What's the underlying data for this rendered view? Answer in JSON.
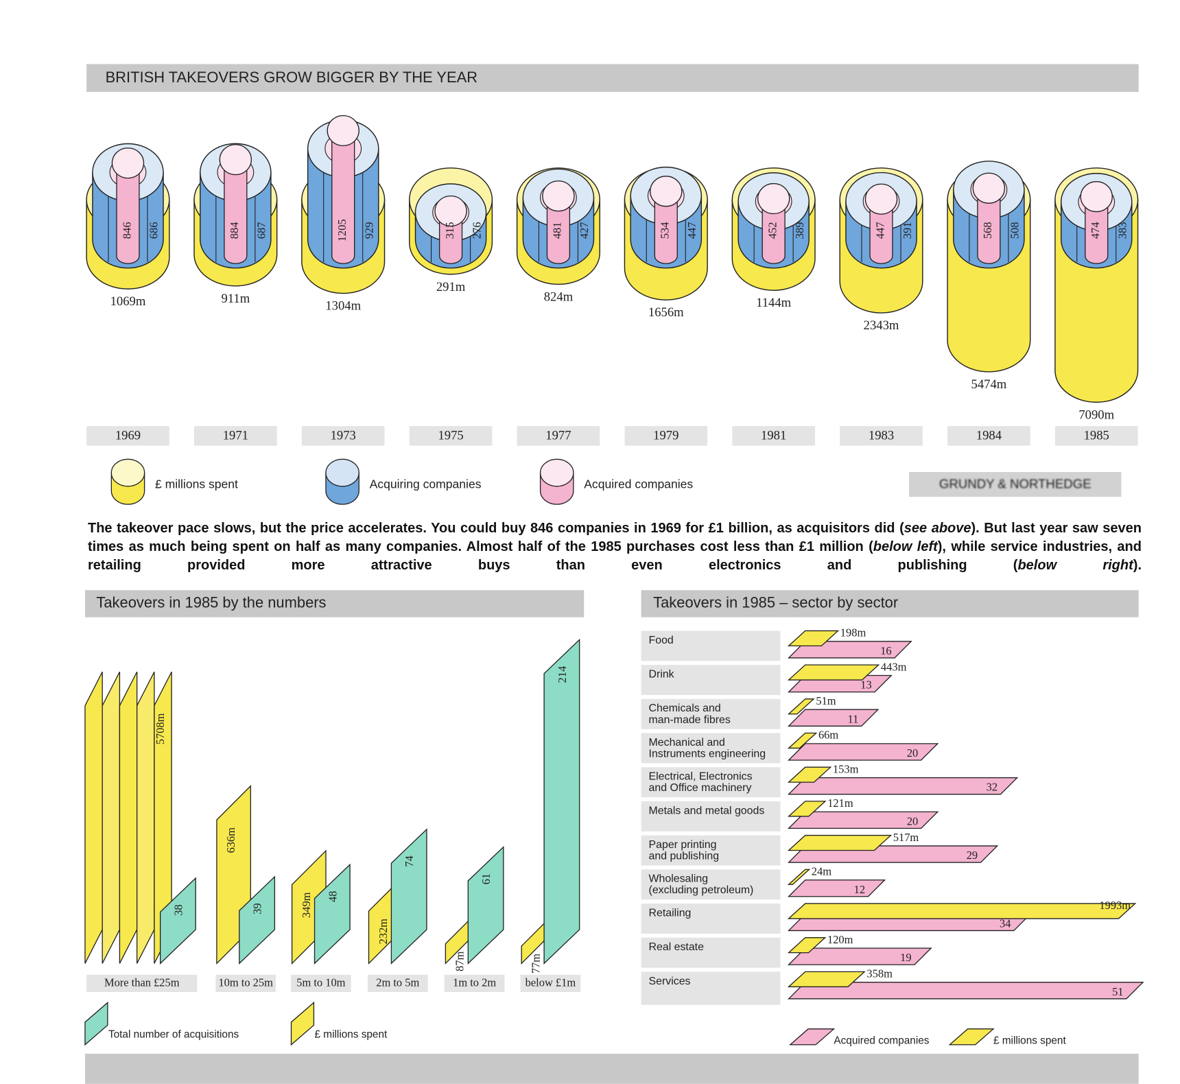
{
  "caption": [
    "The takeover pace slows, but the price accelerates. You could buy 846 companies in 1969 for £1 billion, as acquisitors did (",
    "see above",
    "). But last year saw seven times as much being spent on half as many companies. Almost half of the 1985 purchases cost less than £1 million (",
    "below left",
    "), while service industries, and retailing provided more attractive buys than even electronics and publishing (",
    "below right",
    ")."
  ],
  "credit": "GRUNDY & NORTHEDGE",
  "chart_data": [
    {
      "type": "cylinder",
      "title": "BRITISH TAKEOVERS GROW BIGGER BY THE YEAR",
      "categories": [
        "1969",
        "1971",
        "1973",
        "1975",
        "1977",
        "1979",
        "1981",
        "1983",
        "1984",
        "1985"
      ],
      "series": [
        {
          "name": "£ millions spent",
          "color": "#f7e84e",
          "values": [
            1069,
            911,
            1304,
            291,
            824,
            1656,
            1144,
            2343,
            5474,
            7090
          ],
          "value_labels": [
            "1069m",
            "911m",
            "1304m",
            "291m",
            "824m",
            "1656m",
            "1144m",
            "2343m",
            "5474m",
            "7090m"
          ]
        },
        {
          "name": "Acquiring companies",
          "color": "#6fa6dc",
          "values": [
            686,
            687,
            929,
            276,
            427,
            447,
            389,
            391,
            508,
            383
          ]
        },
        {
          "name": "Acquired companies",
          "color": "#f4b3cf",
          "values": [
            846,
            884,
            1205,
            315,
            481,
            534,
            452,
            447,
            568,
            474
          ]
        }
      ]
    },
    {
      "type": "bar",
      "orientation": "vertical",
      "title": "Takeovers in 1985 by the numbers",
      "categories": [
        "More than £25m",
        "10m to 25m",
        "5m to 10m",
        "2m to 5m",
        "1m to 2m",
        "below £1m"
      ],
      "series": [
        {
          "name": "Total number of acquisitions",
          "color": "#8ddcc6",
          "values": [
            38,
            39,
            48,
            74,
            61,
            214
          ]
        },
        {
          "name": "£ millions spent",
          "color": "#f7e84e",
          "values": [
            5708,
            636,
            349,
            232,
            87,
            77
          ],
          "value_labels": [
            "5708m",
            "636m",
            "349m",
            "232m",
            "87m",
            "77m"
          ]
        }
      ]
    },
    {
      "type": "bar",
      "orientation": "horizontal",
      "title": "Takeovers in 1985 – sector by sector",
      "categories": [
        "Food",
        "Drink",
        "Chemicals and\nman-made fibres",
        "Mechanical and\nInstruments engineering",
        "Electrical, Electronics\nand Office machinery",
        "Metals and metal goods",
        "Paper printing\nand publishing",
        "Wholesaling\n(excluding petroleum)",
        "Retailing",
        "Real estate",
        "Services"
      ],
      "series": [
        {
          "name": "Acquired companies",
          "color": "#f4b3cf",
          "values": [
            16,
            13,
            11,
            20,
            32,
            20,
            29,
            12,
            34,
            19,
            51
          ]
        },
        {
          "name": "£ millions spent",
          "color": "#f7e84e",
          "values": [
            198,
            443,
            51,
            66,
            153,
            121,
            517,
            24,
            1993,
            120,
            358
          ],
          "value_labels": [
            "198m",
            "443m",
            "51m",
            "66m",
            "153m",
            "121m",
            "517m",
            "24m",
            "1993m",
            "120m",
            "358m"
          ]
        }
      ]
    }
  ]
}
